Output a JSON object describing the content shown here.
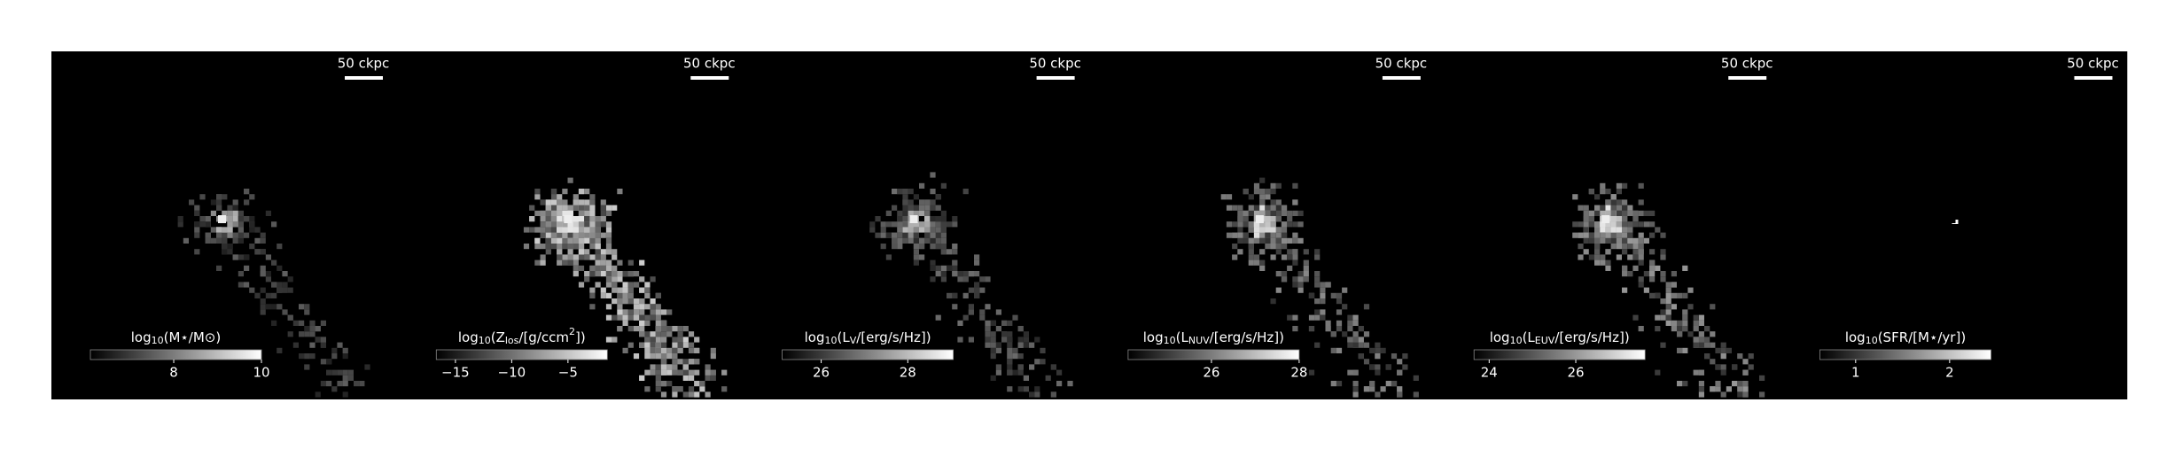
{
  "chart_data": [
    {
      "type": "image",
      "scale_label": "50 ckpc",
      "colorbar_label": [
        {
          "text": "log"
        },
        {
          "text": "10",
          "sub": true
        },
        {
          "text": "(M⋆/M⊙)"
        }
      ],
      "clim": [
        6.1,
        10
      ],
      "cticks": [
        8,
        10
      ]
    },
    {
      "type": "image",
      "scale_label": "50 ckpc",
      "colorbar_label": [
        {
          "text": "log"
        },
        {
          "text": "10",
          "sub": true
        },
        {
          "text": "(Z"
        },
        {
          "text": "los",
          "sub": true
        },
        {
          "text": "/[g/ccm"
        },
        {
          "text": "2",
          "sup": true
        },
        {
          "text": "])"
        }
      ],
      "clim": [
        -16.7,
        -1.5
      ],
      "cticks": [
        {
          "value": -15,
          "label": "−15"
        },
        {
          "value": -10,
          "label": "−10"
        },
        {
          "value": -5,
          "label": "−5"
        }
      ]
    },
    {
      "type": "image",
      "scale_label": "50 ckpc",
      "colorbar_label": [
        {
          "text": "log"
        },
        {
          "text": "10",
          "sub": true
        },
        {
          "text": "(L"
        },
        {
          "text": "V",
          "sub": true
        },
        {
          "text": "/[erg/s/Hz])"
        }
      ],
      "clim": [
        25.1,
        29.05
      ],
      "cticks": [
        26,
        28
      ]
    },
    {
      "type": "image",
      "scale_label": "50 ckpc",
      "colorbar_label": [
        {
          "text": "log"
        },
        {
          "text": "10",
          "sub": true
        },
        {
          "text": "(L"
        },
        {
          "text": "NUV",
          "sub": true
        },
        {
          "text": "/[erg/s/Hz])"
        }
      ],
      "clim": [
        24.1,
        28
      ],
      "cticks": [
        26,
        28
      ]
    },
    {
      "type": "image",
      "scale_label": "50 ckpc",
      "colorbar_label": [
        {
          "text": "log"
        },
        {
          "text": "10",
          "sub": true
        },
        {
          "text": "(L"
        },
        {
          "text": "EUV",
          "sub": true
        },
        {
          "text": "/[erg/s/Hz])"
        }
      ],
      "clim": [
        23.65,
        27.6
      ],
      "cticks": [
        24,
        26
      ]
    },
    {
      "type": "image",
      "scale_label": "50 ckpc",
      "colorbar_label": [
        {
          "text": "log"
        },
        {
          "text": "10",
          "sub": true
        },
        {
          "text": "(SFR/[M⋆/yr])"
        }
      ],
      "clim": [
        0.62,
        2.44
      ],
      "cticks": [
        1,
        2
      ]
    }
  ]
}
